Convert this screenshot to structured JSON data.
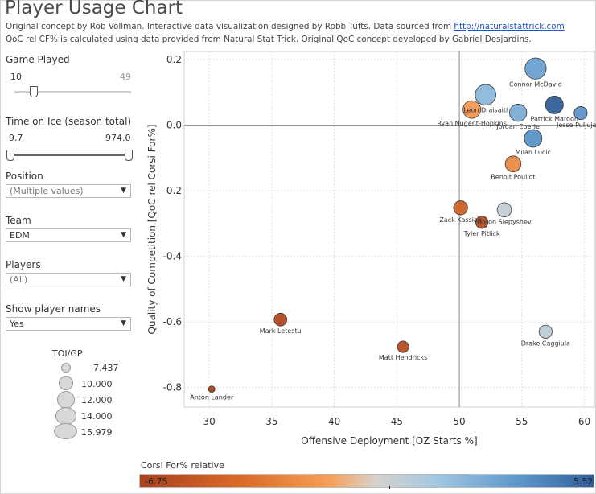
{
  "header": {
    "title": "Player Usage Chart",
    "line1_text": "Original concept by Rob Vollman.  Interactive data visualization designed by Robb Tufts.  Data sourced from ",
    "line1_link": "http://naturalstattrick.com",
    "line2_text": "QoC rel CF% is calculated using data provided from Natural Stat Trick.  Original QoC concept developed by Gabriel Desjardins."
  },
  "filters": {
    "games_played": {
      "label": "Game Played",
      "min": "10",
      "max": "49"
    },
    "toi": {
      "label": "Time on Ice (season total)",
      "min": "9.7",
      "max": "974.0"
    },
    "position": {
      "label": "Position",
      "value": "(Multiple values)"
    },
    "team": {
      "label": "Team",
      "value": "EDM"
    },
    "players": {
      "label": "Players",
      "value": "(All)"
    },
    "show_names": {
      "label": "Show player names",
      "value": "Yes"
    }
  },
  "size_legend": {
    "title": "TOI/GP",
    "items": [
      "7.437",
      "10.000",
      "12.000",
      "14.000",
      "15.979"
    ]
  },
  "color_legend": {
    "title": "Corsi For% relative",
    "min": "-6.75",
    "max": "5.52"
  },
  "colors": {
    "neg_strong": "#a7411f",
    "neg": "#d96a28",
    "neg_light": "#f6a15a",
    "neutral": "#d6d2cc",
    "pos_light": "#9fc6e3",
    "pos": "#5b95c9",
    "pos_strong": "#305f9a"
  },
  "chart_data": {
    "type": "scatter",
    "xlabel": "Offensive Deployment [OZ Starts %]",
    "ylabel": "Quality of Competition [QoC rel Corsi For%]",
    "xlim": [
      28,
      60.8
    ],
    "ylim": [
      -0.86,
      0.225
    ],
    "x_ticks": [
      "30",
      "35",
      "40",
      "45",
      "50",
      "55",
      "60"
    ],
    "y_ticks": [
      "0.2",
      "0.0",
      "-0.2",
      "-0.4",
      "-0.6",
      "-0.8"
    ],
    "x_reference": 50,
    "y_reference": 0,
    "grid": true,
    "points": [
      {
        "label": "Connor McDavid",
        "x": 56.1,
        "y": 0.173,
        "color_value": 3.0,
        "size_value": 15.3
      },
      {
        "label": "Patrick Maroon",
        "x": 57.6,
        "y": 0.062,
        "color_value": 5.52,
        "size_value": 13.5
      },
      {
        "label": "Leon Draisaitl",
        "x": 52.1,
        "y": 0.093,
        "color_value": 2.0,
        "size_value": 15.0
      },
      {
        "label": "Ryan Nugent-Hopkins",
        "x": 51.0,
        "y": 0.048,
        "color_value": -2.0,
        "size_value": 13.4
      },
      {
        "label": "Jordan Eberle",
        "x": 54.7,
        "y": 0.038,
        "color_value": 2.5,
        "size_value": 13.2
      },
      {
        "label": "Jesse Puljujarvi",
        "x": 59.7,
        "y": 0.037,
        "color_value": 3.5,
        "size_value": 11.0
      },
      {
        "label": "Milan Lucic",
        "x": 55.9,
        "y": -0.04,
        "color_value": 3.6,
        "size_value": 13.4
      },
      {
        "label": "Benoit Pouliot",
        "x": 54.3,
        "y": -0.118,
        "color_value": -2.6,
        "size_value": 12.4
      },
      {
        "label": "Zack Kassian",
        "x": 50.1,
        "y": -0.252,
        "color_value": -4.8,
        "size_value": 11.5
      },
      {
        "label": "Anton Slepyshev",
        "x": 53.6,
        "y": -0.258,
        "color_value": 0.2,
        "size_value": 11.6
      },
      {
        "label": "Tyler Pitlick",
        "x": 51.8,
        "y": -0.296,
        "color_value": -6.0,
        "size_value": 10.6
      },
      {
        "label": "Mark Letestu",
        "x": 35.7,
        "y": -0.593,
        "color_value": -6.2,
        "size_value": 10.8
      },
      {
        "label": "Matt Hendricks",
        "x": 45.5,
        "y": -0.676,
        "color_value": -5.9,
        "size_value": 10.1
      },
      {
        "label": "Drake Caggiula",
        "x": 56.9,
        "y": -0.63,
        "color_value": 0.5,
        "size_value": 11.0
      },
      {
        "label": "Anton Lander",
        "x": 30.2,
        "y": -0.805,
        "color_value": -6.75,
        "size_value": 7.437
      }
    ]
  }
}
